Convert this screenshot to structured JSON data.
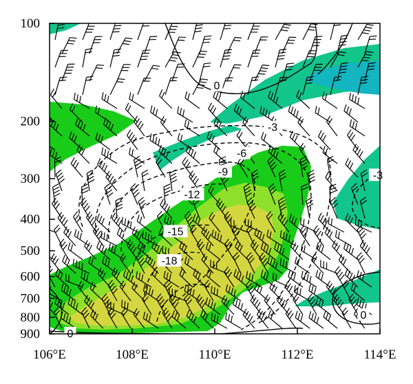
{
  "chart_data": {
    "type": "contour",
    "title": "",
    "xlabel": "",
    "ylabel": "",
    "x_axis": {
      "unit": "longitude",
      "range": [
        106,
        114
      ],
      "ticks": [
        {
          "value": 106,
          "label": "106°E"
        },
        {
          "value": 108,
          "label": "108°E"
        },
        {
          "value": 110,
          "label": "110°E"
        },
        {
          "value": 112,
          "label": "112°E"
        },
        {
          "value": 114,
          "label": "114°E"
        }
      ]
    },
    "y_axis": {
      "unit": "pressure (hPa)",
      "scale": "log",
      "inverted": true,
      "range": [
        100,
        900
      ],
      "ticks": [
        {
          "value": 100,
          "label": "100"
        },
        {
          "value": 200,
          "label": "200"
        },
        {
          "value": 300,
          "label": "300"
        },
        {
          "value": 400,
          "label": "400"
        },
        {
          "value": 500,
          "label": "500"
        },
        {
          "value": 600,
          "label": "600"
        },
        {
          "value": 700,
          "label": "700"
        },
        {
          "value": 800,
          "label": "800"
        },
        {
          "value": 900,
          "label": "900"
        }
      ]
    },
    "contour_labels": [
      {
        "text": "0",
        "x": 110.05,
        "p": 155
      },
      {
        "text": "-3",
        "x": 111.4,
        "p": 208
      },
      {
        "text": "-6",
        "x": 110.65,
        "p": 250
      },
      {
        "text": "-9",
        "x": 110.2,
        "p": 285
      },
      {
        "text": "-12",
        "x": 109.45,
        "p": 335
      },
      {
        "text": "-15",
        "x": 109.05,
        "p": 435
      },
      {
        "text": "-18",
        "x": 108.9,
        "p": 535
      },
      {
        "text": "0",
        "x": 106.5,
        "p": 895
      },
      {
        "text": "-3",
        "x": 113.95,
        "p": 292
      },
      {
        "text": "0",
        "x": 113.6,
        "p": 785
      }
    ],
    "shading_colors": {
      "green": "#19cc19",
      "teal": "#12c58a",
      "cyan": "#12b5c0",
      "light_green": "#8fe02b",
      "yellow": "#d4d640"
    },
    "line_color": "#000000",
    "barb_color": "#000000",
    "grid": false
  }
}
